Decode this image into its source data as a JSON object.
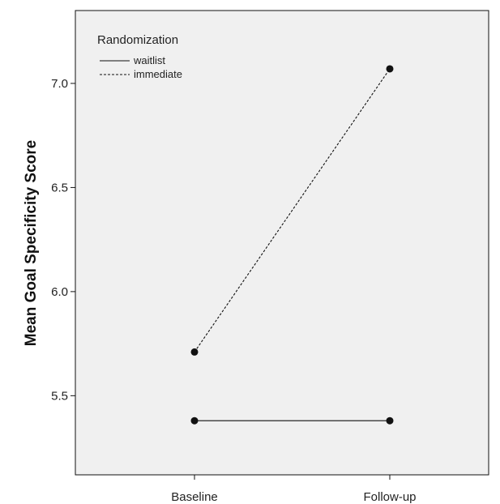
{
  "chart_data": {
    "type": "line",
    "title": "",
    "xlabel": "",
    "ylabel": "Mean Goal Specificity Score",
    "categories": [
      "Baseline",
      "Follow-up"
    ],
    "yticks": [
      "5.5",
      "6.0",
      "6.5",
      "7.0"
    ],
    "ylim": [
      5.12,
      7.35
    ],
    "grid": false,
    "legend": {
      "title": "Randomization",
      "placement": "top-left"
    },
    "series": [
      {
        "name": "waitlist",
        "values": [
          5.38,
          5.38
        ],
        "line_style": "solid"
      },
      {
        "name": "immediate",
        "values": [
          5.71,
          7.07
        ],
        "line_style": "dashed"
      }
    ],
    "colors": {
      "panel_background": "#f0f0f0",
      "line": "#111111",
      "point": "#111111"
    }
  }
}
